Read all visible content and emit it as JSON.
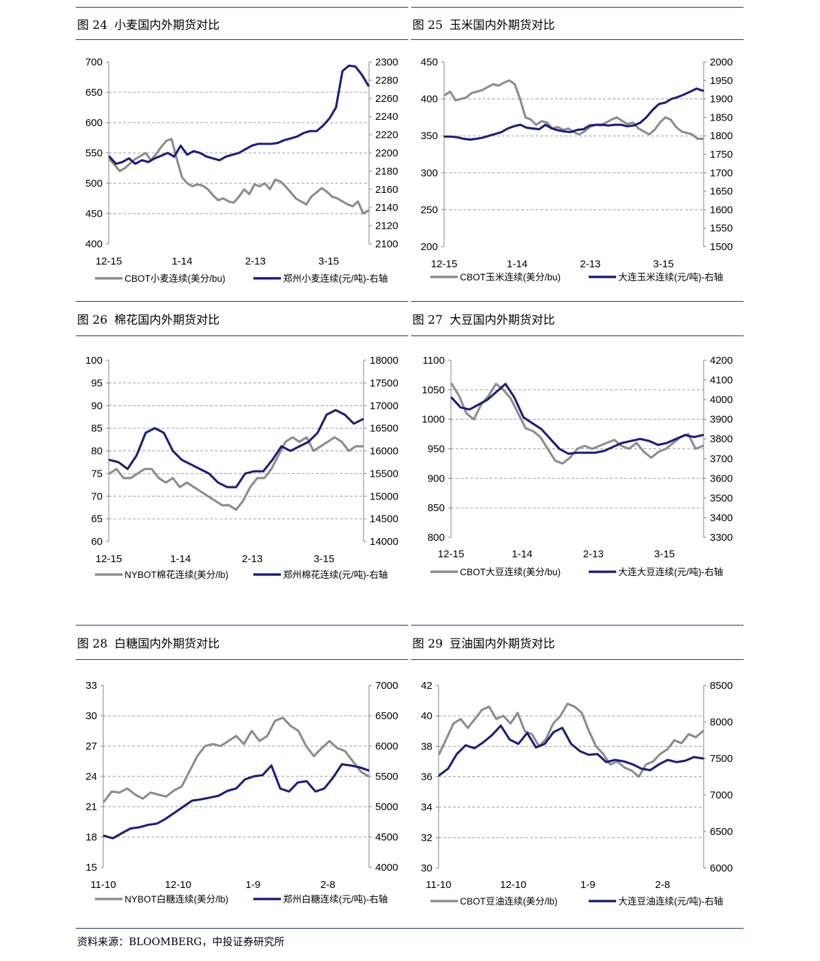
{
  "colors": {
    "left_series": "#8c8c8c",
    "right_series": "#1a1f7e",
    "rule": "#1c2e72",
    "grid": "#9a9a9a"
  },
  "source_note": "资料来源：BLOOMBERG，中投证券研究所",
  "panels": [
    {
      "fig_label": "图 24",
      "fig_title": "小麦国内外期货对比"
    },
    {
      "fig_label": "图 25",
      "fig_title": "玉米国内外期货对比"
    },
    {
      "fig_label": "图 26",
      "fig_title": "棉花国内外期货对比"
    },
    {
      "fig_label": "图 27",
      "fig_title": "大豆国内外期货对比"
    },
    {
      "fig_label": "图 28",
      "fig_title": "白糖国内外期货对比"
    },
    {
      "fig_label": "图 29",
      "fig_title": "豆油国内外期货对比"
    }
  ],
  "chart_data": [
    {
      "type": "line",
      "title": "小麦国内外期货对比",
      "x_ticks": [
        "12-15",
        "1-14",
        "2-13",
        "3-15"
      ],
      "y_left": {
        "min": 400,
        "max": 700,
        "step": 50
      },
      "y_right": {
        "min": 2100,
        "max": 2300,
        "step": 20
      },
      "grid": true,
      "legend_position": "bottom",
      "series": [
        {
          "name": "CBOT小麦连续(美分/bu)",
          "axis": "left",
          "values": [
            540,
            530,
            520,
            525,
            533,
            540,
            545,
            550,
            538,
            548,
            560,
            570,
            573,
            540,
            510,
            500,
            495,
            498,
            496,
            490,
            480,
            472,
            475,
            470,
            468,
            478,
            490,
            482,
            498,
            495,
            500,
            490,
            506,
            503,
            495,
            485,
            475,
            470,
            465,
            478,
            485,
            492,
            486,
            478,
            475,
            470,
            465,
            462,
            470,
            450,
            455
          ]
        },
        {
          "name": "郑州小麦连续(元/吨)-右轴",
          "axis": "right",
          "values": [
            2196,
            2188,
            2190,
            2194,
            2188,
            2192,
            2190,
            2194,
            2197,
            2200,
            2196,
            2208,
            2198,
            2202,
            2200,
            2196,
            2194,
            2192,
            2196,
            2198,
            2200,
            2204,
            2208,
            2210,
            2210,
            2210,
            2211,
            2214,
            2216,
            2218,
            2222,
            2224,
            2224,
            2230,
            2238,
            2250,
            2290,
            2296,
            2295,
            2286,
            2274
          ]
        }
      ]
    },
    {
      "type": "line",
      "title": "玉米国内外期货对比",
      "x_ticks": [
        "12-15",
        "1-14",
        "2-13",
        "3-15"
      ],
      "y_left": {
        "min": 200,
        "max": 450,
        "step": 50
      },
      "y_right": {
        "min": 1500,
        "max": 2000,
        "step": 50
      },
      "grid": true,
      "legend_position": "bottom",
      "series": [
        {
          "name": "CBOT玉米连续(美分/bu)",
          "axis": "left",
          "values": [
            405,
            410,
            398,
            400,
            402,
            408,
            410,
            412,
            416,
            420,
            418,
            422,
            425,
            420,
            400,
            375,
            372,
            365,
            370,
            368,
            360,
            362,
            358,
            360,
            355,
            352,
            356,
            362,
            365,
            364,
            368,
            372,
            375,
            370,
            366,
            368,
            360,
            356,
            352,
            358,
            368,
            375,
            372,
            362,
            356,
            354,
            352,
            346,
            346
          ]
        },
        {
          "name": "大连玉米连续(元/吨)-右轴",
          "axis": "right",
          "values": [
            1798,
            1798,
            1796,
            1792,
            1790,
            1792,
            1795,
            1800,
            1805,
            1810,
            1820,
            1826,
            1830,
            1822,
            1820,
            1818,
            1830,
            1820,
            1815,
            1812,
            1810,
            1816,
            1818,
            1828,
            1830,
            1830,
            1828,
            1830,
            1830,
            1826,
            1828,
            1835,
            1850,
            1870,
            1886,
            1890,
            1900,
            1905,
            1912,
            1920,
            1928,
            1922
          ]
        }
      ]
    },
    {
      "type": "line",
      "title": "棉花国内外期货对比",
      "x_ticks": [
        "12-15",
        "1-14",
        "2-13",
        "3-15"
      ],
      "y_left": {
        "min": 60,
        "max": 100,
        "step": 5
      },
      "y_right": {
        "min": 14000,
        "max": 18000,
        "step": 500
      },
      "grid": true,
      "legend_position": "bottom",
      "series": [
        {
          "name": "NYBOT棉花连续(美分/lb)",
          "axis": "left",
          "values": [
            75,
            76,
            74,
            74,
            75,
            76,
            76,
            74,
            73,
            74,
            72,
            73,
            72,
            71,
            70,
            69,
            68,
            68,
            67,
            69,
            72,
            74,
            74,
            76,
            79,
            82,
            83,
            82,
            83,
            80,
            81,
            82,
            83,
            82,
            80,
            81,
            81
          ]
        },
        {
          "name": "郑州棉花连续(元/吨)-右轴",
          "axis": "right",
          "values": [
            15800,
            15750,
            15600,
            15900,
            16400,
            16500,
            16400,
            16000,
            15800,
            15700,
            15600,
            15500,
            15300,
            15200,
            15200,
            15500,
            15550,
            15550,
            15800,
            16100,
            16000,
            16100,
            16200,
            16400,
            16800,
            16900,
            16800,
            16600,
            16700
          ]
        }
      ]
    },
    {
      "type": "line",
      "title": "大豆国内外期货对比",
      "x_ticks": [
        "12-15",
        "1-14",
        "2-13",
        "3-15"
      ],
      "y_left": {
        "min": 800,
        "max": 1100,
        "step": 50
      },
      "y_right": {
        "min": 3300,
        "max": 4200,
        "step": 100
      },
      "grid": true,
      "legend_position": "bottom",
      "series": [
        {
          "name": "CBOT大豆连续(美分/bu)",
          "axis": "left",
          "values": [
            1060,
            1040,
            1010,
            1000,
            1025,
            1040,
            1060,
            1050,
            1035,
            1010,
            985,
            980,
            970,
            950,
            930,
            925,
            935,
            950,
            955,
            950,
            955,
            960,
            965,
            955,
            950,
            960,
            945,
            935,
            945,
            950,
            960,
            970,
            975,
            950,
            955
          ]
        },
        {
          "name": "大连大豆连续(元/吨)-右轴",
          "axis": "right",
          "values": [
            4010,
            3960,
            3950,
            3975,
            4000,
            4040,
            4080,
            4010,
            3910,
            3880,
            3850,
            3800,
            3750,
            3725,
            3730,
            3730,
            3730,
            3740,
            3760,
            3780,
            3790,
            3800,
            3790,
            3770,
            3780,
            3800,
            3820,
            3810,
            3820
          ]
        }
      ]
    },
    {
      "type": "line",
      "title": "白糖国内外期货对比",
      "x_ticks": [
        "11-10",
        "12-10",
        "1-9",
        "2-8"
      ],
      "y_left": {
        "min": 15,
        "max": 33,
        "step": 3
      },
      "y_right": {
        "min": 4000,
        "max": 7000,
        "step": 500
      },
      "grid": true,
      "legend_position": "bottom",
      "series": [
        {
          "name": "NYBOT白糖连续(美分/lb)",
          "axis": "left",
          "values": [
            21.5,
            22.5,
            22.4,
            22.8,
            22.2,
            21.8,
            22.4,
            22.2,
            22.0,
            22.6,
            23.0,
            24.5,
            26.0,
            27.0,
            27.2,
            27.0,
            27.5,
            28.0,
            27.2,
            28.5,
            27.5,
            28.0,
            29.5,
            29.8,
            29.0,
            28.5,
            27.0,
            26.0,
            26.8,
            27.5,
            26.8,
            26.5,
            25.5,
            24.5,
            24.0
          ]
        },
        {
          "name": "郑州白糖连续(元/吨)-右轴",
          "axis": "right",
          "values": [
            4520,
            4480,
            4560,
            4640,
            4660,
            4700,
            4720,
            4800,
            4900,
            5000,
            5100,
            5120,
            5150,
            5180,
            5260,
            5300,
            5450,
            5500,
            5520,
            5680,
            5300,
            5250,
            5400,
            5420,
            5250,
            5300,
            5480,
            5700,
            5680,
            5650,
            5600
          ]
        }
      ]
    },
    {
      "type": "line",
      "title": "豆油国内外期货对比",
      "x_ticks": [
        "11-10",
        "12-10",
        "1-9",
        "2-8"
      ],
      "y_left": {
        "min": 30,
        "max": 42,
        "step": 2
      },
      "y_right": {
        "min": 6000,
        "max": 8500,
        "step": 500
      },
      "grid": true,
      "legend_position": "bottom",
      "series": [
        {
          "name": "CBOT豆油连续(美分/lb)",
          "axis": "left",
          "values": [
            37.5,
            38.5,
            39.5,
            39.8,
            39.2,
            39.8,
            40.4,
            40.6,
            39.8,
            40.0,
            39.5,
            40.2,
            39.0,
            38.8,
            38.0,
            38.5,
            39.5,
            40.0,
            40.8,
            40.6,
            40.2,
            39.0,
            38.0,
            37.5,
            36.8,
            37.0,
            36.6,
            36.4,
            36.0,
            36.8,
            37.0,
            37.5,
            37.8,
            38.4,
            38.2,
            38.8,
            38.6,
            39.0
          ]
        },
        {
          "name": "大连豆油连续(元/吨)-右轴",
          "axis": "right",
          "values": [
            7270,
            7360,
            7560,
            7680,
            7640,
            7720,
            7820,
            7950,
            7760,
            7700,
            7850,
            7650,
            7700,
            7860,
            7920,
            7700,
            7600,
            7550,
            7560,
            7450,
            7480,
            7460,
            7420,
            7360,
            7340,
            7420,
            7480,
            7450,
            7470,
            7520,
            7500
          ]
        }
      ]
    }
  ]
}
